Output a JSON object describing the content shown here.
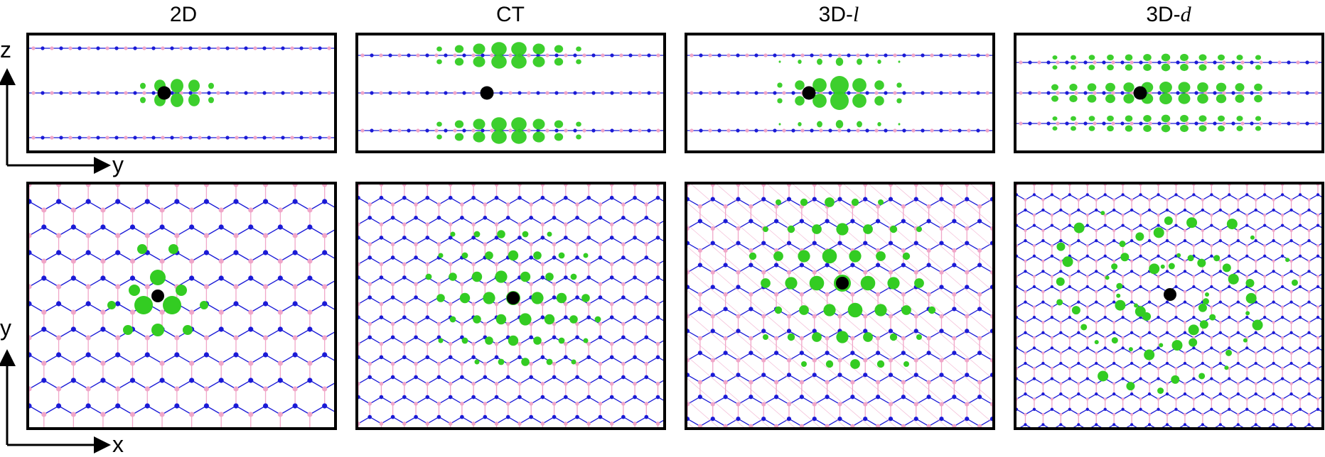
{
  "columns": [
    {
      "key": "2d",
      "title_main": "2D",
      "title_var": ""
    },
    {
      "key": "ct",
      "title_main": "CT",
      "title_var": ""
    },
    {
      "key": "3dl",
      "title_main": "3D-",
      "title_var": "l"
    },
    {
      "key": "3dd",
      "title_main": "3D-",
      "title_var": "d"
    }
  ],
  "axes": {
    "side": {
      "vertical": "z",
      "horizontal": "y"
    },
    "top": {
      "vertical": "y",
      "horizontal": "x"
    }
  },
  "colors": {
    "boron": "#f0a6c8",
    "nitrogen": "#1a1ad6",
    "density": "#33cc22",
    "defect": "#000000",
    "frame": "#000000"
  }
}
